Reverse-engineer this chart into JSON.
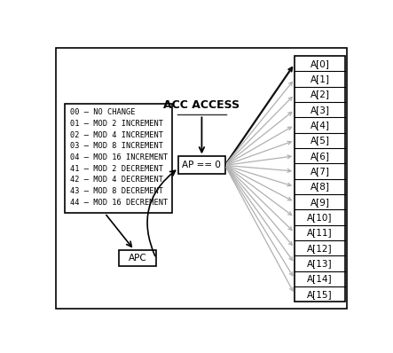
{
  "bg_color": "#ffffff",
  "border_color": "#000000",
  "acc_access_label": "ACC ACCESS",
  "ap_box_label": "AP == 0",
  "apc_box_label": "APC",
  "accumulator_labels": [
    "A[0]",
    "A[1]",
    "A[2]",
    "A[3]",
    "A[4]",
    "A[5]",
    "A[6]",
    "A[7]",
    "A[8]",
    "A[9]",
    "A[10]",
    "A[11]",
    "A[12]",
    "A[13]",
    "A[14]",
    "A[15]"
  ],
  "codes_text": "00 – NO CHANGE\n01 – MOD 2 INCREMENT\n02 – MOD 4 INCREMENT\n03 – MOD 8 INCREMENT\n04 – MOD 16 INCREMENT\n41 – MOD 2 DECREMENT\n42 – MOD 4 DECREMENT\n43 – MOD 8 DECREMENT\n44 – MOD 16 DECREMENT",
  "arrow_color_dark": "#111111",
  "arrow_color_gray": "#b0b0b0",
  "font_size_labels": 7.5,
  "font_size_acc": 7.5,
  "font_size_codes": 6.2,
  "font_size_acc_access": 9.0
}
